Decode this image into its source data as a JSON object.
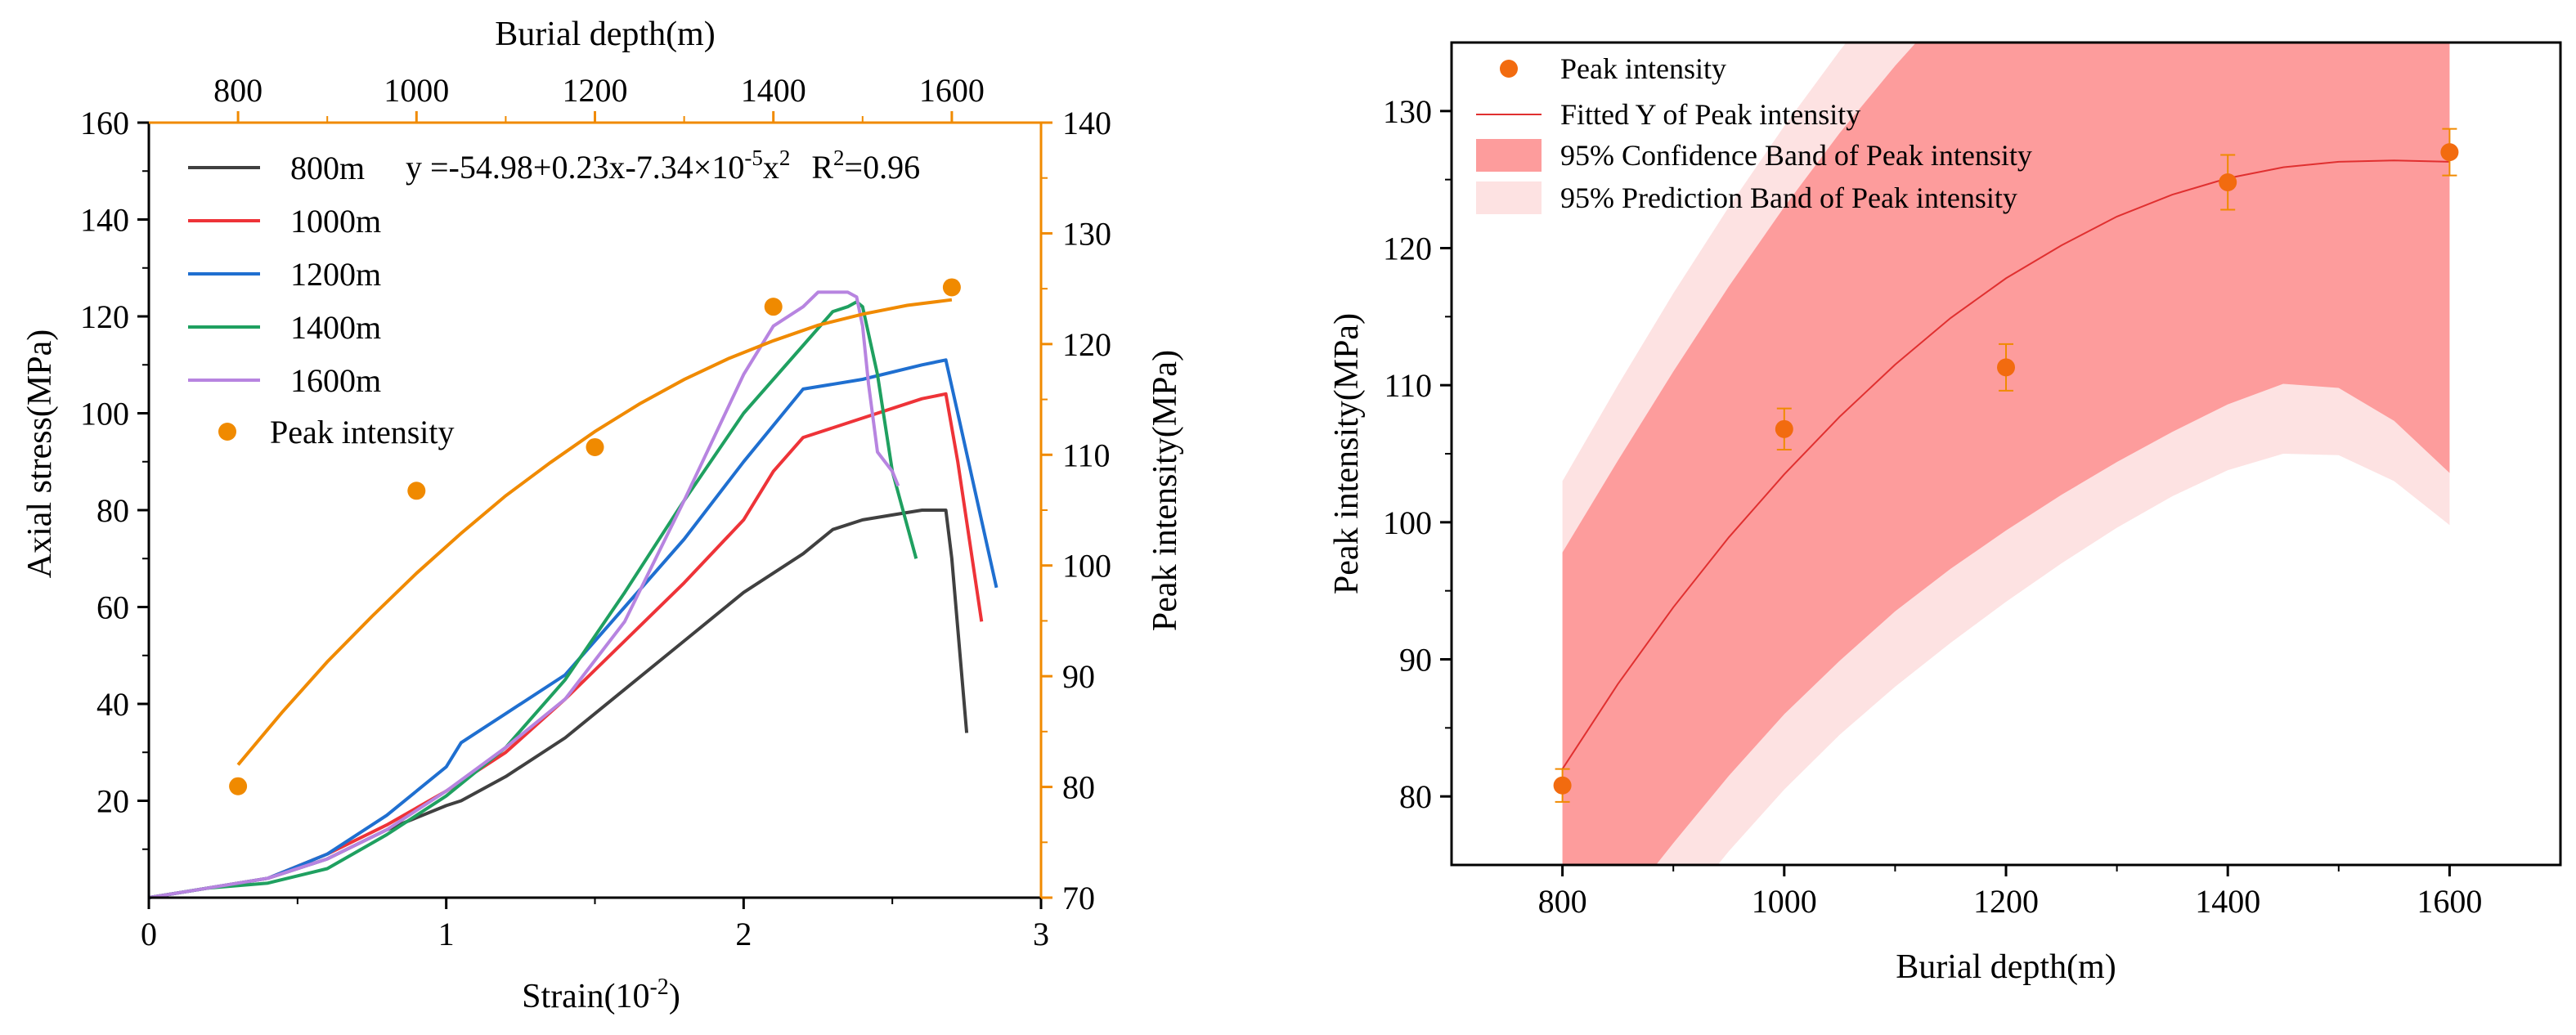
{
  "colors": {
    "axis": "#000000",
    "orange": "#f08a00",
    "s800": "#404040",
    "s1000": "#ee3338",
    "s1200": "#1f6fd0",
    "s1400": "#1fa060",
    "s1600": "#b784e0",
    "fit": "#e03030",
    "confidence": "#fd9c9c",
    "prediction": "#fde2e2",
    "marker": "#f26b0f"
  },
  "chart_data": [
    {
      "id": "left",
      "type": "line",
      "title": "",
      "xlabel_main": "Strain(10",
      "xlabel_sup": "-2",
      "xlabel_end": ")",
      "ylabel": "Axial stress(MPa)",
      "y2label": "Peak intensity(MPa)",
      "x2label": "Burial depth(m)",
      "xlim": [
        0,
        3
      ],
      "ylim": [
        0,
        160
      ],
      "y2lim": [
        70,
        140
      ],
      "x2lim": [
        700,
        1700
      ],
      "xticks": [
        "0",
        "1",
        "2",
        "3"
      ],
      "yticks": [
        "20",
        "40",
        "60",
        "80",
        "100",
        "120",
        "140",
        "160"
      ],
      "y2ticks": [
        "70",
        "80",
        "90",
        "100",
        "110",
        "120",
        "130",
        "140"
      ],
      "x2ticks": [
        "800",
        "1000",
        "1200",
        "1400",
        "1600"
      ],
      "equation": {
        "prefix": "y =-54.98+0.23x-7.34×10",
        "exp1": "-5",
        "mid": "x",
        "exp2": "2",
        "r2_prefix": "R",
        "r2_exp": "2",
        "r2_value": "=0.96"
      },
      "legend": [
        {
          "label": "800m",
          "kind": "line",
          "color_key": "s800"
        },
        {
          "label": "1000m",
          "kind": "line",
          "color_key": "s1000"
        },
        {
          "label": "1200m",
          "kind": "line",
          "color_key": "s1200"
        },
        {
          "label": "1400m",
          "kind": "line",
          "color_key": "s1400"
        },
        {
          "label": "1600m",
          "kind": "line",
          "color_key": "s1600"
        },
        {
          "label": "Peak intensity",
          "kind": "marker",
          "color_key": "orange"
        }
      ],
      "series": [
        {
          "name": "800m",
          "color_key": "s800",
          "x": [
            0,
            0.2,
            0.4,
            0.6,
            0.8,
            1.0,
            1.05,
            1.2,
            1.4,
            1.6,
            1.8,
            2.0,
            2.2,
            2.3,
            2.4,
            2.5,
            2.6,
            2.68,
            2.7,
            2.75
          ],
          "y": [
            0,
            2,
            4,
            8,
            14,
            19,
            20,
            25,
            33,
            43,
            53,
            63,
            71,
            76,
            78,
            79,
            80,
            80,
            70,
            34
          ]
        },
        {
          "name": "1000m",
          "color_key": "s1000",
          "x": [
            0,
            0.2,
            0.4,
            0.6,
            0.8,
            1.0,
            1.2,
            1.4,
            1.6,
            1.8,
            2.0,
            2.1,
            2.2,
            2.4,
            2.6,
            2.68,
            2.72,
            2.8
          ],
          "y": [
            0,
            2,
            4,
            9,
            15,
            22,
            30,
            41,
            53,
            65,
            78,
            88,
            95,
            99,
            103,
            104,
            90,
            57
          ]
        },
        {
          "name": "1200m",
          "color_key": "s1200",
          "x": [
            0,
            0.2,
            0.4,
            0.6,
            0.8,
            1.0,
            1.05,
            1.2,
            1.4,
            1.6,
            1.8,
            2.0,
            2.2,
            2.4,
            2.6,
            2.68,
            2.72,
            2.85
          ],
          "y": [
            0,
            2,
            4,
            9,
            17,
            27,
            32,
            38,
            46,
            60,
            74,
            90,
            105,
            107,
            110,
            111,
            100,
            64
          ]
        },
        {
          "name": "1400m",
          "color_key": "s1400",
          "x": [
            0,
            0.2,
            0.4,
            0.6,
            0.8,
            1.0,
            1.2,
            1.4,
            1.6,
            1.8,
            2.0,
            2.2,
            2.3,
            2.35,
            2.38,
            2.4,
            2.45,
            2.5,
            2.58
          ],
          "y": [
            0,
            2,
            3,
            6,
            13,
            21,
            31,
            45,
            63,
            82,
            100,
            114,
            121,
            122,
            123,
            122,
            108,
            88,
            70
          ]
        },
        {
          "name": "1600m",
          "color_key": "s1600",
          "x": [
            0,
            0.2,
            0.4,
            0.6,
            0.8,
            1.0,
            1.2,
            1.4,
            1.6,
            1.8,
            1.9,
            2.0,
            2.1,
            2.2,
            2.25,
            2.3,
            2.35,
            2.38,
            2.4,
            2.42,
            2.45,
            2.5,
            2.52
          ],
          "y": [
            0,
            2,
            4,
            8,
            14,
            22,
            31,
            41,
            57,
            82,
            95,
            108,
            118,
            122,
            125,
            125,
            125,
            124,
            118,
            106,
            92,
            88,
            85
          ]
        }
      ],
      "fit_curve": {
        "name": "Fitted",
        "color_key": "orange",
        "x": [
          800,
          850,
          900,
          950,
          1000,
          1050,
          1100,
          1150,
          1200,
          1250,
          1300,
          1350,
          1400,
          1450,
          1500,
          1550,
          1600
        ],
        "y": [
          82.0,
          86.8,
          91.3,
          95.4,
          99.3,
          102.9,
          106.3,
          109.3,
          112.1,
          114.6,
          116.8,
          118.7,
          120.3,
          121.7,
          122.7,
          123.5,
          124.0
        ]
      },
      "peak_points": {
        "name": "Peak intensity",
        "strain": [
          0.3,
          0.9,
          1.5,
          2.1,
          2.7
        ],
        "stress": [
          23,
          84,
          93,
          122,
          126
        ]
      }
    },
    {
      "id": "right",
      "type": "scatter",
      "title": "",
      "xlabel": "Burial depth(m)",
      "ylabel": "Peak intensity(MPa)",
      "xlim": [
        700,
        1700
      ],
      "ylim": [
        75,
        135
      ],
      "xticks": [
        "800",
        "1000",
        "1200",
        "1400",
        "1600"
      ],
      "yticks": [
        "80",
        "90",
        "100",
        "110",
        "120",
        "130"
      ],
      "legend": [
        {
          "label": "Peak intensity",
          "kind": "marker"
        },
        {
          "label": "Fitted Y of Peak intensity",
          "kind": "line"
        },
        {
          "label": "95% Confidence Band of Peak intensity",
          "kind": "conf"
        },
        {
          "label": "95% Prediction Band of Peak intensity",
          "kind": "pred"
        }
      ],
      "points": {
        "x": [
          800,
          1000,
          1200,
          1400,
          1600
        ],
        "y": [
          80.8,
          106.8,
          111.3,
          124.8,
          127.0
        ],
        "err": [
          1.2,
          1.5,
          1.7,
          2.0,
          1.7
        ]
      },
      "fit": {
        "x": [
          800,
          850,
          900,
          950,
          1000,
          1050,
          1100,
          1150,
          1200,
          1250,
          1300,
          1350,
          1400,
          1450,
          1500,
          1550,
          1600
        ],
        "y": [
          82.0,
          88.2,
          93.8,
          98.9,
          103.5,
          107.7,
          111.5,
          114.9,
          117.8,
          120.2,
          122.3,
          123.9,
          125.1,
          125.9,
          126.3,
          126.4,
          126.3
        ]
      },
      "confidence_band": {
        "x": [
          800,
          850,
          900,
          950,
          1000,
          1050,
          1100,
          1150,
          1200,
          1250,
          1300,
          1350,
          1400,
          1450,
          1500,
          1550,
          1600
        ],
        "upper": [
          97.8,
          104.5,
          111.0,
          117.2,
          123.0,
          128.4,
          133.3,
          137.8,
          141.5,
          144.5,
          146.5,
          147.8,
          148.2,
          147.9,
          147.0,
          146.0,
          145.0
        ],
        "lower": [
          66.0,
          71.5,
          76.6,
          81.5,
          86.0,
          89.9,
          93.5,
          96.6,
          99.4,
          102.0,
          104.4,
          106.6,
          108.6,
          110.1,
          109.8,
          107.4,
          103.6
        ]
      },
      "prediction_band": {
        "x": [
          800,
          850,
          900,
          950,
          1000,
          1050,
          1100,
          1150,
          1200,
          1250,
          1300,
          1350,
          1400,
          1450,
          1500,
          1550,
          1600
        ],
        "upper": [
          103.0,
          110.0,
          116.7,
          123.0,
          128.9,
          134.4,
          139.5,
          144.0,
          148.0,
          151.0,
          153.0,
          154.0,
          154.0,
          153.5,
          152.5,
          151.5,
          150.5
        ],
        "lower": [
          61.0,
          66.0,
          71.0,
          76.0,
          80.5,
          84.5,
          88.0,
          91.2,
          94.2,
          97.0,
          99.6,
          101.9,
          103.8,
          105.0,
          104.9,
          103.0,
          99.8
        ]
      }
    }
  ]
}
